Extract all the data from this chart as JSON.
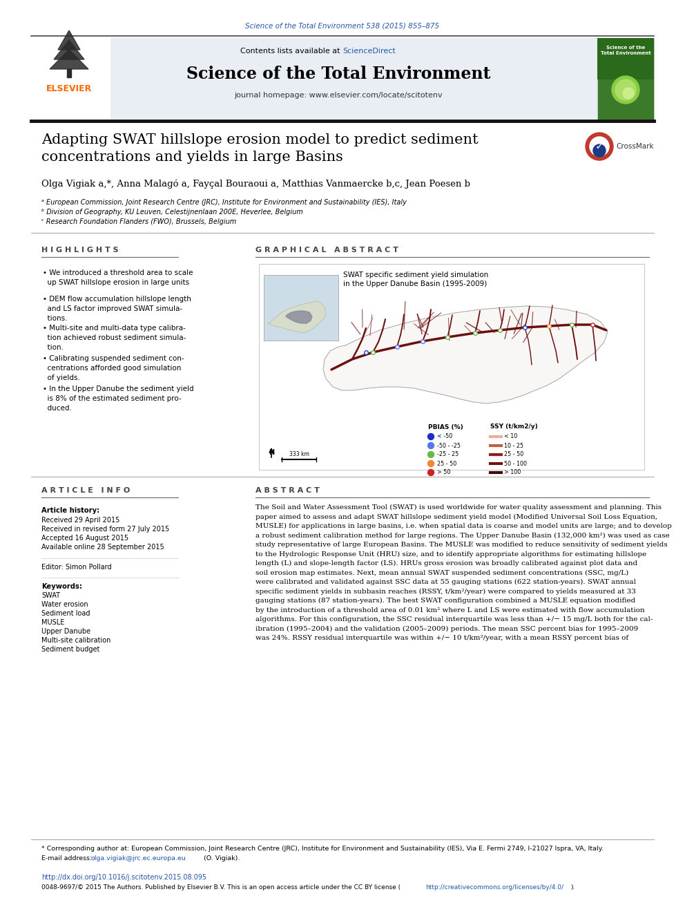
{
  "page_width": 9.92,
  "page_height": 13.23,
  "bg_color": "#ffffff",
  "journal_ref": "Science of the Total Environment 538 (2015) 855–875",
  "journal_ref_color": "#2255aa",
  "journal_name": "Science of the Total Environment",
  "journal_homepage": "journal homepage: www.elsevier.com/locate/scitotenv",
  "contents_text": "Contents lists available at ScienceDirect",
  "sciencedirect_text": "ScienceDirect",
  "sciencedirect_color": "#2255aa",
  "header_bg": "#e8eef4",
  "elsevier_color": "#ff6600",
  "paper_title": "Adapting SWAT hillslope erosion model to predict sediment\nconcentrations and yields in large Basins",
  "authors_line": "Olga Vigiak a,*, Anna Malagó a, Fayçal Bouraoui a, Matthias Vanmaercke b,c, Jean Poesen b",
  "affil_a": "ᵃ European Commission, Joint Research Centre (JRC), Institute for Environment and Sustainability (IES), Italy",
  "affil_b": "ᵇ Division of Geography, KU Leuven, Celestijnenlaan 200E, Heverlee, Belgium",
  "affil_c": "ᶜ Research Foundation Flanders (FWO), Brussels, Belgium",
  "highlights_title": "H I G H L I G H T S",
  "highlights": [
    "• We introduced a threshold area to scale\n  up SWAT hillslope erosion in large units",
    "• DEM flow accumulation hillslope length\n  and LS factor improved SWAT simula-\n  tions.",
    "• Multi-site and multi-data type calibra-\n  tion achieved robust sediment simula-\n  tion.",
    "• Calibrating suspended sediment con-\n  centrations afforded good simulation\n  of yields.",
    "• In the Upper Danube the sediment yield\n  is 8% of the estimated sediment pro-\n  duced."
  ],
  "graphical_abstract_title": "G R A P H I C A L   A B S T R A C T",
  "map_title": "SWAT specific sediment yield simulation\nin the Upper Danube Basin (1995-2009)",
  "article_info_title": "A R T I C L E   I N F O",
  "article_history_label": "Article history:",
  "received": "Received 29 April 2015",
  "revised": "Received in revised form 27 July 2015",
  "accepted": "Accepted 16 August 2015",
  "available": "Available online 28 September 2015",
  "editor_label": "Editor: Simon Pollard",
  "keywords_label": "Keywords:",
  "keywords": [
    "SWAT",
    "Water erosion",
    "Sediment load",
    "MUSLE",
    "Upper Danube",
    "Multi-site calibration",
    "Sediment budget"
  ],
  "abstract_title": "A B S T R A C T",
  "abstract_text": "The Soil and Water Assessment Tool (SWAT) is used worldwide for water quality assessment and planning. This paper aimed to assess and adapt SWAT hillslope sediment yield model (Modified Universal Soil Loss Equation, MUSLE) for applications in large basins, i.e. when spatial data is coarse and model units are large; and to develop a robust sediment calibration method for large regions. The Upper Danube Basin (132,000 km²) was used as case study representative of large European Basins. The MUSLE was modified to reduce sensitivity of sediment yields to the Hydrologic Response Unit (HRU) size, and to identify appropriate algorithms for estimating hillslope length (L) and slope-length factor (LS). HRUs gross erosion was broadly calibrated against plot data and soil erosion map estimates. Next, mean annual SWAT suspended sediment concentrations (SSC, mg/L) were calibrated and validated against SSC data at 55 gauging stations (622 station-years). SWAT annual specific sediment yields in subbasin reaches (RSSY, t/km²/year) were compared to yields measured at 33 gauging stations (87 station-years). The best SWAT configuration combined a MUSLE equation modified by the introduction of a threshold area of 0.01 km² where L and LS were estimated with flow accumulation algorithms. For this configuration, the SSC residual interquartile was less than +/− 15 mg/L both for the calibration (1995–2004) and the validation (2005–2009) periods. The mean SSC percent bias for 1995–2009 was 24%. RSSY residual interquartile was within +/− 10 t/km²/year, with a mean RSSY percent bias of",
  "footer_note": "* Corresponding author at: European Commission, Joint Research Centre (JRC), Institute for Environment and Sustainability (IES), Via E. Fermi 2749, I-21027 Ispra, VA, Italy.",
  "email_prefix": "E-mail address: ",
  "email_addr": "olga.vigiak@jrc.ec.europa.eu",
  "email_suffix": " (O. Vigiak).",
  "email_color": "#2255aa",
  "doi_line": "http://dx.doi.org/10.1016/j.scitotenv.2015.08.095",
  "doi_color": "#2255aa",
  "copyright_line": "0048-9697/© 2015 The Authors. Published by Elsevier B.V. This is an open access article under the CC BY license (",
  "cc_url": "http://creativecommons.org/licenses/by/4.0/",
  "cc_color": "#2255aa",
  "copyright_suffix": ").",
  "river_color": "#6B0F0F",
  "basin_color": "#aaaaaa",
  "pbias_labels": [
    "< -50",
    "-50 - -25",
    "-25 - 25",
    "25 - 50",
    "> 50"
  ],
  "pbias_colors": [
    "#1a2acc",
    "#5577ee",
    "#66bb44",
    "#ee8833",
    "#cc2222"
  ],
  "ssy_labels": [
    "< 10",
    "10 - 25",
    "25 - 50",
    "50 - 100",
    "> 100"
  ],
  "ssy_colors": [
    "#e8b0a0",
    "#c06040",
    "#902020",
    "#701010",
    "#400808"
  ]
}
